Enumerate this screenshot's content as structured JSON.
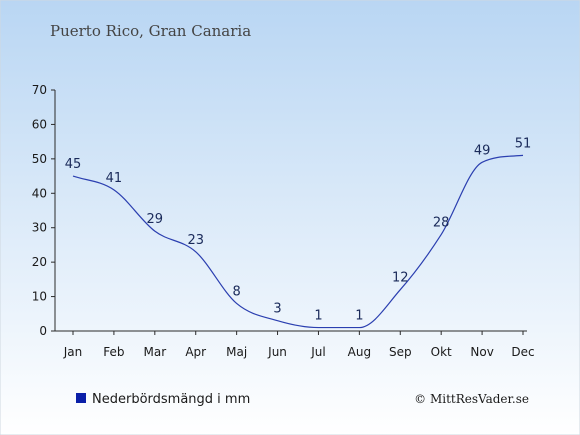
{
  "chart_data": {
    "type": "line",
    "title": "Puerto Rico, Gran Canaria",
    "categories": [
      "Jan",
      "Feb",
      "Mar",
      "Apr",
      "Maj",
      "Jun",
      "Jul",
      "Aug",
      "Sep",
      "Okt",
      "Nov",
      "Dec"
    ],
    "series": [
      {
        "name": "Nederbördsmängd i mm",
        "values": [
          45,
          41,
          29,
          23,
          8,
          3,
          1,
          1,
          12,
          28,
          49,
          51
        ],
        "color": "#2b3fb0"
      }
    ],
    "ylim": [
      0,
      70
    ],
    "yticks": [
      0,
      10,
      20,
      30,
      40,
      50,
      60,
      70
    ],
    "grid": false,
    "legend": "bottom-left",
    "colors": {
      "background_top": "#b9d6f3",
      "background_bottom": "#ffffff",
      "line": "#2b3fb0",
      "legend_marker": "#0a1fa8"
    }
  },
  "footer": {
    "credit": "© MittResVader.se"
  }
}
